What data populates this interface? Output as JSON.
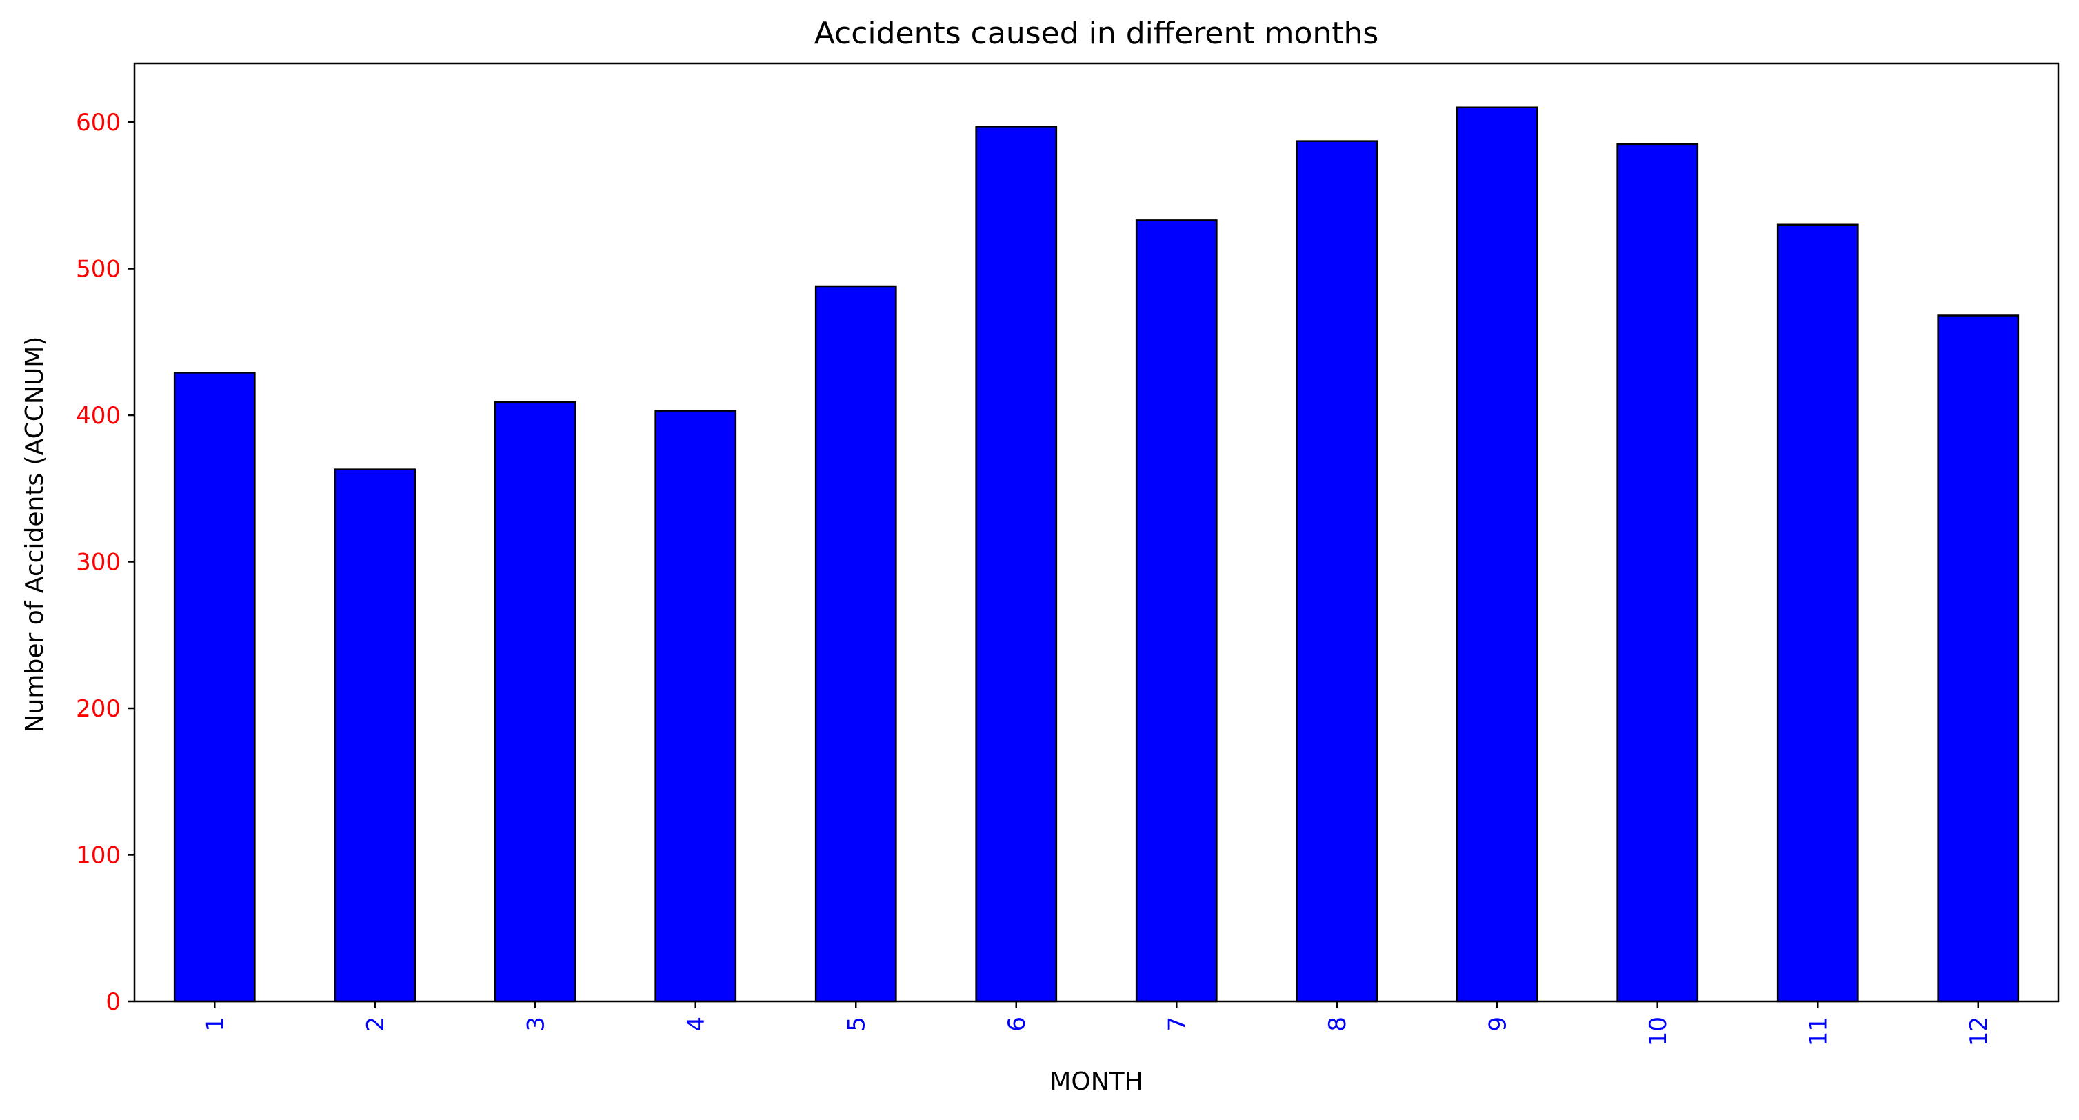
{
  "chart_data": {
    "type": "bar",
    "title": "Accidents caused in different months",
    "xlabel": "MONTH",
    "ylabel": "Number of Accidents (ACCNUM)",
    "categories": [
      "1",
      "2",
      "3",
      "4",
      "5",
      "6",
      "7",
      "8",
      "9",
      "10",
      "11",
      "12"
    ],
    "values": [
      429,
      363,
      409,
      403,
      488,
      597,
      533,
      587,
      610,
      585,
      530,
      468
    ],
    "ylim": [
      0,
      640
    ],
    "yticks": [
      0,
      100,
      200,
      300,
      400,
      500,
      600
    ],
    "grid": false,
    "legend": "none",
    "colors": {
      "bar_fill": "#0000ff",
      "bar_edge": "#000000",
      "xtick_label": "#0000ff",
      "ytick_label": "#ff0000",
      "axes": "#000000",
      "text": "#000000"
    }
  }
}
